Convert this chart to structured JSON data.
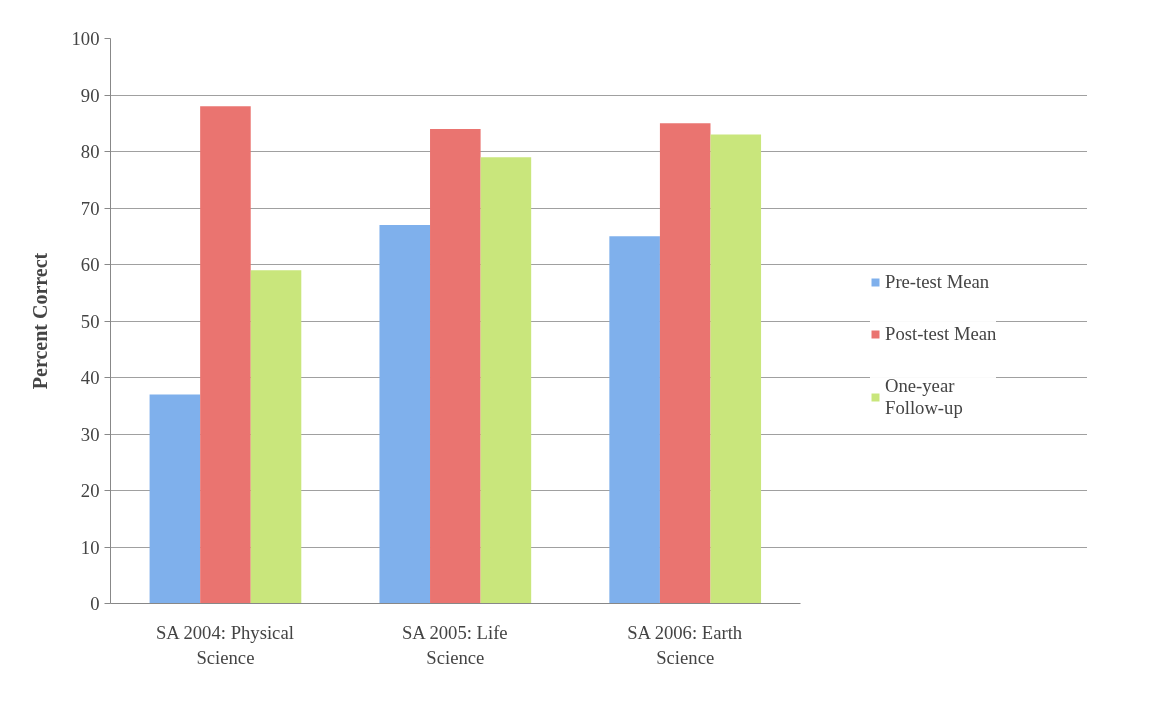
{
  "chart_data": {
    "type": "bar",
    "ylabel": "Percent Correct",
    "categories": [
      "SA 2004: Physical Science",
      "SA 2005: Life Science",
      "SA 2006: Earth Science"
    ],
    "series": [
      {
        "name": "Pre-test Mean",
        "color": "#7fb0ec",
        "values": [
          37,
          67,
          65
        ]
      },
      {
        "name": "Post-test Mean",
        "color": "#ea7470",
        "values": [
          88,
          84,
          85
        ]
      },
      {
        "name": "One-year Follow-up",
        "color": "#c9e67c",
        "values": [
          59,
          79,
          83
        ]
      }
    ],
    "ylim": [
      0,
      100
    ],
    "yticks": [
      0,
      10,
      20,
      30,
      40,
      50,
      60,
      70,
      80,
      90,
      100
    ],
    "grid": "y",
    "legend": "right"
  }
}
